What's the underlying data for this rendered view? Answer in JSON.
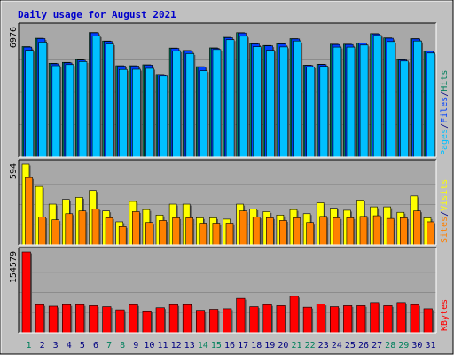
{
  "title": "Daily usage for August 2021",
  "colors": {
    "background": "#C0C0C0",
    "plot_background": "#A8A8A8",
    "title": "#0000CC",
    "hits": "#00805C",
    "files": "#0040FF",
    "pages": "#00C0FF",
    "visits": "#FFFF00",
    "sites": "#FF8000",
    "kbytes": "#FF0000",
    "weekend_label": "#00805C",
    "weekday_label": "#000080",
    "separator": "#000080"
  },
  "chart_data": [
    {
      "type": "bar",
      "panel": "hits-files-pages",
      "categories": [
        "1",
        "2",
        "3",
        "4",
        "5",
        "6",
        "7",
        "8",
        "9",
        "10",
        "11",
        "12",
        "13",
        "14",
        "15",
        "16",
        "17",
        "18",
        "19",
        "20",
        "21",
        "22",
        "23",
        "24",
        "25",
        "26",
        "27",
        "28",
        "29",
        "30",
        "31"
      ],
      "weekend_days": [
        1,
        7,
        8,
        14,
        15,
        21,
        22,
        28,
        29
      ],
      "y_max_label": "6976",
      "ylim": [
        0,
        6976
      ],
      "legend": [
        {
          "label": "Pages",
          "color_key": "pages"
        },
        {
          "label": "/",
          "color_key": "separator"
        },
        {
          "label": "Files",
          "color_key": "files"
        },
        {
          "label": "/",
          "color_key": "separator"
        },
        {
          "label": "Hits",
          "color_key": "hits"
        }
      ],
      "series": [
        {
          "name": "Hits",
          "color_key": "hits",
          "values": [
            5950,
            6400,
            5050,
            5100,
            5250,
            6710,
            6250,
            4920,
            4920,
            4970,
            4450,
            5870,
            5740,
            4870,
            5880,
            6450,
            6700,
            6110,
            6010,
            6110,
            6380,
            4950,
            5000,
            6080,
            6080,
            6150,
            6650,
            6420,
            5250,
            6380,
            5720
          ]
        },
        {
          "name": "Files",
          "color_key": "files",
          "values": [
            5920,
            6380,
            5020,
            5070,
            5220,
            6690,
            6230,
            4900,
            4900,
            4950,
            4430,
            5850,
            5720,
            4850,
            5850,
            6430,
            6680,
            6090,
            5990,
            6090,
            6360,
            4930,
            4980,
            6060,
            6060,
            6130,
            6630,
            6400,
            5230,
            6360,
            5700
          ]
        },
        {
          "name": "Pages",
          "color_key": "pages",
          "values": [
            5750,
            6190,
            4920,
            4980,
            5140,
            6530,
            6090,
            4720,
            4730,
            4780,
            4360,
            5720,
            5570,
            4650,
            5790,
            6320,
            6510,
            5940,
            5750,
            5930,
            6250,
            4860,
            4890,
            5920,
            5920,
            6030,
            6550,
            6220,
            5170,
            6250,
            5600
          ]
        }
      ]
    },
    {
      "type": "bar",
      "panel": "visits-sites",
      "categories": [
        "1",
        "2",
        "3",
        "4",
        "5",
        "6",
        "7",
        "8",
        "9",
        "10",
        "11",
        "12",
        "13",
        "14",
        "15",
        "16",
        "17",
        "18",
        "19",
        "20",
        "21",
        "22",
        "23",
        "24",
        "25",
        "26",
        "27",
        "28",
        "29",
        "30",
        "31"
      ],
      "y_max_label": "594",
      "ylim": [
        0,
        594
      ],
      "legend": [
        {
          "label": "Sites",
          "color_key": "sites"
        },
        {
          "label": "/",
          "color_key": "separator"
        },
        {
          "label": "Visits",
          "color_key": "visits"
        }
      ],
      "series": [
        {
          "name": "Visits",
          "color_key": "visits",
          "values": [
            594,
            430,
            300,
            335,
            350,
            400,
            250,
            170,
            320,
            260,
            220,
            300,
            300,
            200,
            200,
            190,
            300,
            265,
            245,
            220,
            260,
            230,
            310,
            270,
            255,
            330,
            280,
            280,
            240,
            360,
            200
          ]
        },
        {
          "name": "Sites",
          "color_key": "sites",
          "values": [
            495,
            205,
            185,
            230,
            250,
            265,
            200,
            135,
            245,
            165,
            180,
            200,
            200,
            160,
            160,
            160,
            250,
            205,
            200,
            180,
            200,
            165,
            210,
            200,
            200,
            210,
            215,
            195,
            200,
            250,
            170
          ]
        }
      ]
    },
    {
      "type": "bar",
      "panel": "kbytes",
      "categories": [
        "1",
        "2",
        "3",
        "4",
        "5",
        "6",
        "7",
        "8",
        "9",
        "10",
        "11",
        "12",
        "13",
        "14",
        "15",
        "16",
        "17",
        "18",
        "19",
        "20",
        "21",
        "22",
        "23",
        "24",
        "25",
        "26",
        "27",
        "28",
        "29",
        "30",
        "31"
      ],
      "y_max_label": "154579",
      "ylim": [
        0,
        154579
      ],
      "legend": [
        {
          "label": "KBytes",
          "color_key": "kbytes"
        }
      ],
      "series": [
        {
          "name": "KBytes",
          "color_key": "kbytes",
          "values": [
            154579,
            54000,
            51000,
            54000,
            54000,
            52000,
            50000,
            44000,
            54000,
            42000,
            48000,
            54000,
            54000,
            43000,
            45000,
            46000,
            66000,
            50000,
            54000,
            52000,
            70000,
            49000,
            55000,
            50000,
            52000,
            52000,
            58000,
            52000,
            58000,
            54000,
            46000
          ]
        }
      ]
    }
  ]
}
